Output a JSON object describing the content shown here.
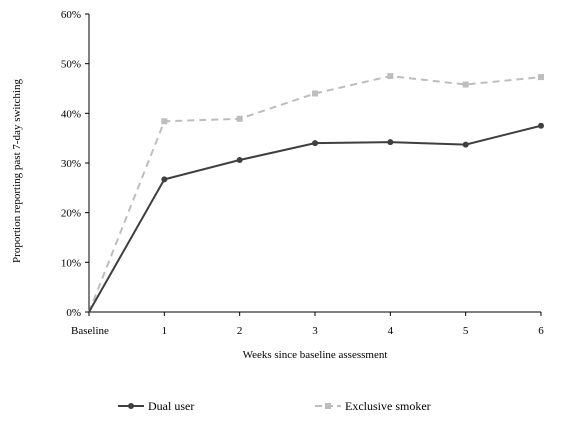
{
  "chart_data": {
    "type": "line",
    "categories": [
      "Baseline",
      "1",
      "2",
      "3",
      "4",
      "5",
      "6"
    ],
    "xlabel": "Weeks since baseline assessment",
    "ylabel": "Proportion reporting past 7-day switching",
    "ylim": [
      0,
      60
    ],
    "yticks": [
      "0%",
      "10%",
      "20%",
      "30%",
      "40%",
      "50%",
      "60%"
    ],
    "grid": false,
    "legend_position": "bottom",
    "series": [
      {
        "name": "Dual user",
        "values": [
          0,
          26.7,
          30.6,
          34.0,
          34.2,
          33.7,
          37.5
        ],
        "color": "#3f3f3f",
        "style": "solid"
      },
      {
        "name": "Exclusive smoker",
        "values": [
          0,
          38.4,
          38.9,
          44.0,
          47.5,
          45.8,
          47.3
        ],
        "color": "#bdbdbd",
        "style": "dashed"
      }
    ]
  }
}
